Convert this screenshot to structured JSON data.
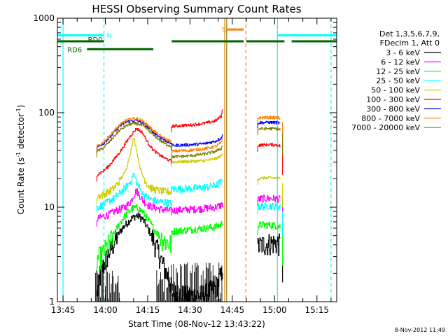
{
  "chart_data": {
    "type": "line",
    "title": "HESSI Observing Summary Count Rates",
    "xlabel": "Start Time (08-Nov-12 13:43:22)",
    "ylabel_main": "Count Rate (s",
    "ylabel_sup1": "-1",
    "ylabel_mid": " detector",
    "ylabel_sup2": "-1",
    "ylabel_end": ")",
    "y_scale": "log",
    "ylim": [
      1,
      1000
    ],
    "xlim_minutes": [
      -2,
      97
    ],
    "x_ticks": [
      {
        "value": 0,
        "label": "13:45"
      },
      {
        "value": 15,
        "label": "14:00"
      },
      {
        "value": 30,
        "label": "14:15"
      },
      {
        "value": 45,
        "label": "14:30"
      },
      {
        "value": 60,
        "label": "14:45"
      },
      {
        "value": 75,
        "label": "15:00"
      },
      {
        "value": 90,
        "label": "15:15"
      }
    ],
    "y_ticks": [
      {
        "value": 1,
        "label": "1"
      },
      {
        "value": 10,
        "label": "10"
      },
      {
        "value": 100,
        "label": "100"
      },
      {
        "value": 1000,
        "label": "1000"
      }
    ],
    "legend_header": [
      "Det 1,3,5,6,7,9,",
      "FDecim 1, Att 0"
    ],
    "legend_position": "right",
    "series": [
      {
        "name": "3 - 6 keV",
        "color": "#000000",
        "segments": [
          {
            "x": [
              12,
              13,
              14,
              16,
              18,
              20,
              22,
              24,
              26,
              28,
              30,
              32,
              34,
              36,
              38,
              38.5
            ],
            "y": [
              1.2,
              1.8,
              2.3,
              3.2,
              4.2,
              5.5,
              6.5,
              7.5,
              8.2,
              7.6,
              6.0,
              4.5,
              3.2,
              2.2,
              1.6,
              1.3
            ]
          },
          {
            "x": [
              38.5,
              40,
              45,
              50,
              54,
              56,
              56.5
            ],
            "y": [
              1.3,
              1.2,
              1.15,
              1.2,
              1.4,
              1.9,
              2.4
            ]
          },
          {
            "x": [
              69,
              70,
              73,
              76,
              77
            ],
            "y": [
              3.8,
              4.0,
              4.2,
              4.2,
              4.0
            ]
          }
        ],
        "spikes": [
          {
            "x": 77.8,
            "y_top": 2.8,
            "y_bottom": 1.6
          }
        ]
      },
      {
        "name": "6 - 12 keV",
        "color": "#ff00ff",
        "segments": [
          {
            "x": [
              12,
              14,
              16,
              18,
              20,
              22,
              24,
              25,
              26,
              27,
              28,
              30,
              32,
              34,
              36,
              38,
              38.5
            ],
            "y": [
              7.5,
              8.0,
              8.3,
              9.0,
              9.5,
              10.0,
              11.5,
              13.5,
              15.0,
              13.5,
              12.0,
              10.5,
              10.0,
              9.6,
              9.4,
              9.2,
              9.0
            ]
          },
          {
            "x": [
              38.5,
              40,
              45,
              50,
              54,
              56,
              56.5
            ],
            "y": [
              9.2,
              9.3,
              9.5,
              9.7,
              10.0,
              10.5,
              11.0
            ]
          },
          {
            "x": [
              69,
              70,
              73,
              76,
              77
            ],
            "y": [
              12.0,
              12.3,
              12.4,
              12.3,
              12.0
            ]
          }
        ],
        "spikes": [
          {
            "x": 77.8,
            "y_top": 11.0,
            "y_bottom": 7.0
          }
        ]
      },
      {
        "name": "12 - 25 keV",
        "color": "#00ff00",
        "segments": [
          {
            "x": [
              12,
              14,
              16,
              18,
              20,
              22,
              24,
              26,
              28,
              30,
              32,
              34,
              36,
              38,
              38.5
            ],
            "y": [
              2.8,
              3.2,
              4.0,
              5.2,
              6.8,
              8.2,
              9.5,
              10.0,
              9.0,
              7.5,
              6.0,
              5.0,
              4.4,
              4.1,
              4.0
            ]
          },
          {
            "x": [
              38.5,
              40,
              45,
              50,
              54,
              56,
              56.5
            ],
            "y": [
              5.5,
              5.6,
              5.8,
              6.0,
              6.2,
              6.5,
              7.0
            ]
          },
          {
            "x": [
              69,
              70,
              73,
              76,
              77
            ],
            "y": [
              6.3,
              6.5,
              6.5,
              6.4,
              6.2
            ]
          }
        ],
        "spikes": [
          {
            "x": 77.8,
            "y_top": 5.0,
            "y_bottom": 2.4
          }
        ]
      },
      {
        "name": "25 - 50 keV",
        "color": "#00ffff",
        "segments": [
          {
            "x": [
              12,
              14,
              16,
              18,
              20,
              22,
              24,
              25,
              26,
              27,
              28,
              30,
              32,
              34,
              36,
              38,
              38.5
            ],
            "y": [
              10.0,
              10.5,
              11.5,
              12.5,
              14.0,
              16.0,
              19.0,
              23.0,
              18.5,
              16.0,
              14.0,
              12.5,
              11.8,
              11.5,
              11.3,
              11.0,
              11.0
            ]
          },
          {
            "x": [
              38.5,
              40,
              45,
              50,
              54,
              56,
              56.5
            ],
            "y": [
              15.5,
              15.6,
              15.8,
              16.2,
              17.0,
              18.5,
              20.0
            ]
          },
          {
            "x": [
              69,
              70,
              73,
              76,
              77
            ],
            "y": [
              10.0,
              10.2,
              10.3,
              10.2,
              10.0
            ]
          }
        ],
        "spikes": [
          {
            "x": 77.8,
            "y_top": 9.0,
            "y_bottom": 5.0
          }
        ]
      },
      {
        "name": "50 - 100 keV",
        "color": "#cccc00",
        "segments": [
          {
            "x": [
              12,
              14,
              16,
              18,
              20,
              22,
              23,
              24,
              25,
              26,
              27,
              28,
              30,
              32,
              34,
              36,
              38,
              38.5
            ],
            "y": [
              13.0,
              13.5,
              14.5,
              16.0,
              19.0,
              24.0,
              30.0,
              40.0,
              55.0,
              40.0,
              28.0,
              22.0,
              17.0,
              15.5,
              15.0,
              14.7,
              14.5,
              14.5
            ]
          },
          {
            "x": [
              38.5,
              40,
              45,
              50,
              54,
              56,
              56.5
            ],
            "y": [
              30.0,
              30.2,
              30.5,
              31.0,
              32.5,
              35.0,
              37.0
            ]
          },
          {
            "x": [
              69,
              70,
              73,
              76,
              77
            ],
            "y": [
              20.0,
              20.3,
              20.5,
              20.3,
              20.0
            ]
          }
        ],
        "spikes": [
          {
            "x": 77.8,
            "y_top": 18.0,
            "y_bottom": 10.0
          }
        ]
      },
      {
        "name": "100 - 300 keV",
        "color": "#ff0000",
        "segments": [
          {
            "x": [
              12,
              14,
              16,
              18,
              20,
              22,
              24,
              26,
              28,
              30,
              32,
              34,
              36,
              38,
              38.5
            ],
            "y": [
              22.0,
              24.0,
              27.0,
              32.0,
              38.0,
              47.0,
              58.0,
              68.0,
              62.0,
              48.0,
              40.0,
              36.0,
              33.0,
              31.0,
              30.5
            ]
          },
          {
            "x": [
              38.5,
              40,
              45,
              50,
              54,
              56,
              56.5
            ],
            "y": [
              72.0,
              72.5,
              74.0,
              77.0,
              82.0,
              92.0,
              108.0
            ]
          },
          {
            "x": [
              69,
              70,
              73,
              76,
              77
            ],
            "y": [
              45.0,
              45.5,
              46.0,
              45.5,
              44.0
            ]
          }
        ],
        "spikes": [
          {
            "x": 77.8,
            "y_top": 40.0,
            "y_bottom": 22.0
          }
        ]
      },
      {
        "name": "300 - 800 keV",
        "color": "#0000ff",
        "segments": [
          {
            "x": [
              12,
              14,
              16,
              18,
              20,
              22,
              24,
              26,
              28,
              30,
              32,
              34,
              36,
              38,
              38.5
            ],
            "y": [
              43.0,
              47.0,
              53.0,
              62.0,
              72.0,
              79.0,
              82.0,
              83.0,
              78.0,
              70.0,
              62.0,
              56.0,
              51.0,
              48.0,
              47.0
            ]
          },
          {
            "x": [
              38.5,
              40,
              45,
              50,
              54,
              56,
              56.5
            ],
            "y": [
              45.0,
              45.2,
              45.8,
              47.0,
              50.0,
              54.0,
              58.0
            ]
          },
          {
            "x": [
              69,
              70,
              73,
              76,
              77
            ],
            "y": [
              78.0,
              78.5,
              79.0,
              78.5,
              77.0
            ]
          }
        ],
        "spikes": [
          {
            "x": 77.8,
            "y_top": 70.0,
            "y_bottom": 40.0
          }
        ]
      },
      {
        "name": "800 - 7000 keV",
        "color": "#ff8000",
        "segments": [
          {
            "x": [
              12,
              14,
              16,
              18,
              20,
              22,
              24,
              26,
              28,
              30,
              32,
              34,
              36,
              38,
              38.5
            ],
            "y": [
              44.0,
              48.0,
              55.0,
              64.0,
              74.0,
              82.0,
              86.0,
              87.0,
              82.0,
              74.0,
              65.0,
              58.0,
              53.0,
              50.0,
              49.0
            ]
          },
          {
            "x": [
              38.5,
              40,
              45,
              50,
              54,
              56,
              56.5
            ],
            "y": [
              39.0,
              39.3,
              40.0,
              41.5,
              44.0,
              48.0,
              52.0
            ]
          },
          {
            "x": [
              69,
              70,
              73,
              76,
              77
            ],
            "y": [
              88.0,
              88.5,
              89.0,
              88.5,
              87.0
            ]
          }
        ],
        "spikes": [
          {
            "x": 77.8,
            "y_top": 80.0,
            "y_bottom": 45.0
          }
        ]
      },
      {
        "name": "7000 - 20000 keV",
        "color": "#808000",
        "segments": [
          {
            "x": [
              12,
              14,
              16,
              18,
              20,
              22,
              24,
              26,
              28,
              30,
              32,
              34,
              36,
              38,
              38.5
            ],
            "y": [
              39.0,
              42.0,
              48.0,
              56.0,
              65.0,
              72.0,
              76.0,
              77.0,
              73.0,
              66.0,
              58.0,
              52.0,
              47.0,
              44.5,
              43.5
            ]
          },
          {
            "x": [
              38.5,
              40,
              45,
              50,
              54,
              56,
              56.5
            ],
            "y": [
              34.0,
              34.3,
              35.0,
              36.5,
              39.0,
              42.0,
              45.0
            ]
          },
          {
            "x": [
              69,
              70,
              73,
              76,
              77
            ],
            "y": [
              67.0,
              67.5,
              68.0,
              67.5,
              66.0
            ]
          }
        ],
        "spikes": [
          {
            "x": 77.8,
            "y_top": 60.0,
            "y_bottom": 35.0
          }
        ]
      }
    ],
    "state_bars": [
      {
        "label": "N",
        "color": "#00ffff",
        "y": 660,
        "spans": [
          [
            -2,
            14.5
          ],
          [
            76,
            97
          ]
        ]
      },
      {
        "label": "S",
        "color": "#ff8000",
        "y": 760,
        "spans": [
          [
            58,
            64
          ]
        ]
      },
      {
        "label": "RD0",
        "color": "#006400",
        "y": 570,
        "spans": [
          [
            -2,
            14.5
          ],
          [
            38.5,
            64
          ],
          [
            65,
            78.5
          ],
          [
            81,
            97
          ]
        ]
      },
      {
        "label": "RD6",
        "color": "#006400",
        "y": 470,
        "spans": [
          [
            8.5,
            32
          ]
        ]
      }
    ],
    "vertical_lines": [
      {
        "x": 0,
        "color": "#00ffff",
        "style": "solid"
      },
      {
        "x": 14.5,
        "color": "#00ffff",
        "style": "dashed"
      },
      {
        "x": 76,
        "color": "#00ffff",
        "style": "solid"
      },
      {
        "x": 95,
        "color": "#00ffff",
        "style": "dashed"
      },
      {
        "x": 57.3,
        "color": "#cc8800",
        "style": "solid"
      },
      {
        "x": 58,
        "color": "#a07000",
        "style": "solid"
      },
      {
        "x": 64.8,
        "color": "#ff8000",
        "style": "dashed"
      }
    ],
    "timestamp": "8-Nov-2012 11:49"
  }
}
